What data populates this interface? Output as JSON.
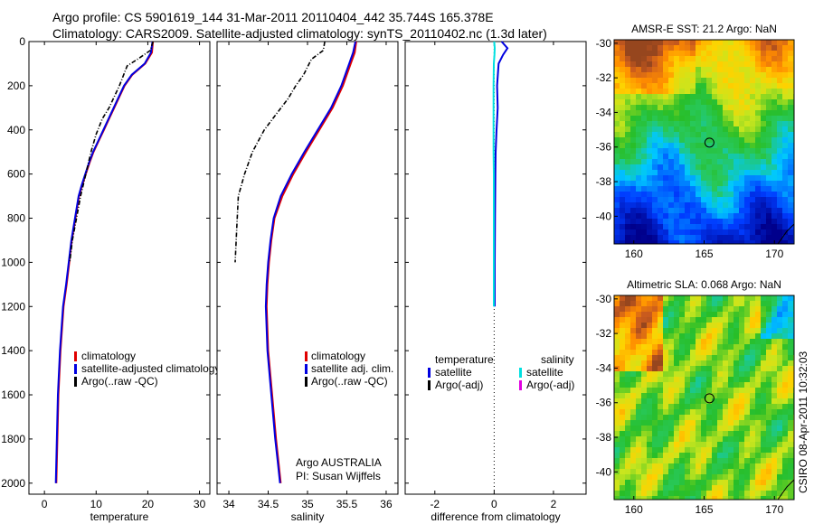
{
  "header": {
    "title_line1": "Argo profile: CS 5901619_144 31-Mar-2011 20110404_442 35.744S 165.378E",
    "title_line2": "Climatology: CARS2009. Satellite-adjusted climatology: synTS_20110402.nc (1.3d later)"
  },
  "side_stamp": "CSIRO 08-Apr-2011 10:32:03",
  "colors": {
    "climatology": "#e00000",
    "satellite": "#0000e0",
    "argo": "#000000",
    "sat_salinity": "#00e0e0",
    "argo_salinity_adj": "#e000e0"
  },
  "chart_data": [
    {
      "type": "line",
      "id": "temperature",
      "xlabel": "temperature",
      "ylabel": "",
      "xlim": [
        -3,
        32
      ],
      "ylim": [
        2050,
        0
      ],
      "y_reversed": true,
      "xticks": [
        0,
        10,
        20,
        30
      ],
      "yticks": [
        0,
        200,
        400,
        600,
        800,
        1000,
        1200,
        1400,
        1600,
        1800,
        2000
      ],
      "series": [
        {
          "name": "climatology",
          "color": "#e00000",
          "style": "solid",
          "x": [
            21.0,
            20.8,
            19.5,
            17.0,
            15.5,
            14.5,
            13.5,
            12.5,
            11.5,
            10.5,
            9.5,
            8.7,
            8.0,
            7.3,
            6.7,
            6.0,
            5.3,
            4.8,
            4.3,
            3.7,
            3.1,
            2.7,
            2.3
          ],
          "y": [
            0,
            50,
            100,
            150,
            200,
            250,
            300,
            350,
            400,
            450,
            500,
            550,
            600,
            650,
            700,
            800,
            900,
            1000,
            1100,
            1200,
            1400,
            1600,
            2000
          ]
        },
        {
          "name": "satellite-adjusted climatology",
          "color": "#0000e0",
          "style": "solid",
          "x": [
            20.9,
            20.6,
            19.4,
            16.9,
            15.4,
            14.4,
            13.4,
            12.4,
            11.4,
            10.4,
            9.4,
            8.6,
            7.9,
            7.2,
            6.6,
            5.9,
            5.2,
            4.7,
            4.2,
            3.6,
            3.0,
            2.6,
            2.2
          ],
          "y": [
            0,
            50,
            100,
            150,
            200,
            250,
            300,
            350,
            400,
            450,
            500,
            550,
            600,
            650,
            700,
            800,
            900,
            1000,
            1100,
            1200,
            1400,
            1600,
            2000
          ]
        },
        {
          "name": "Argo(..raw -QC)",
          "color": "#000000",
          "style": "dashdot",
          "x": [
            21.0,
            20.5,
            18.0,
            16.0,
            14.5,
            13.5,
            12.5,
            11.2,
            10.0,
            9.0,
            8.0,
            7.0,
            6.2,
            5.4,
            4.9
          ],
          "y": [
            0,
            40,
            80,
            110,
            200,
            250,
            300,
            350,
            420,
            500,
            600,
            700,
            800,
            900,
            1000
          ]
        }
      ],
      "legend": [
        "climatology",
        "satellite-adjusted climatology",
        "Argo(..raw -QC)"
      ],
      "legend_position": "lower-right"
    },
    {
      "type": "line",
      "id": "salinity",
      "xlabel": "salinity",
      "xlim": [
        33.85,
        36.15
      ],
      "ylim": [
        2050,
        0
      ],
      "y_reversed": true,
      "xticks": [
        34,
        34.5,
        35,
        35.5,
        36
      ],
      "xtick_labels": [
        "34",
        "34.5",
        "35",
        "35.5",
        "36"
      ],
      "series": [
        {
          "name": "climatology",
          "color": "#e00000",
          "style": "solid",
          "x": [
            35.62,
            35.6,
            35.55,
            35.45,
            35.32,
            35.15,
            34.98,
            34.82,
            34.68,
            34.58,
            34.54,
            34.51,
            34.49,
            34.48,
            34.5,
            34.55,
            34.6,
            34.63,
            34.66
          ],
          "y": [
            0,
            50,
            100,
            200,
            300,
            400,
            500,
            600,
            700,
            800,
            900,
            1000,
            1100,
            1200,
            1400,
            1600,
            1800,
            1900,
            2000
          ]
        },
        {
          "name": "satellite adj. clim.",
          "color": "#0000e0",
          "style": "solid",
          "x": [
            35.61,
            35.58,
            35.53,
            35.43,
            35.3,
            35.13,
            34.96,
            34.8,
            34.66,
            34.57,
            34.53,
            34.5,
            34.48,
            34.47,
            34.49,
            34.54,
            34.59,
            34.62,
            34.65
          ],
          "y": [
            0,
            50,
            100,
            200,
            300,
            400,
            500,
            600,
            700,
            800,
            900,
            1000,
            1100,
            1200,
            1400,
            1600,
            1800,
            1900,
            2000
          ]
        },
        {
          "name": "Argo(..raw -QC)",
          "color": "#000000",
          "style": "dashdot",
          "x": [
            35.22,
            35.2,
            35.05,
            34.95,
            34.85,
            34.75,
            34.6,
            34.45,
            34.3,
            34.2,
            34.12,
            34.1,
            34.08
          ],
          "y": [
            0,
            40,
            80,
            150,
            200,
            260,
            330,
            400,
            500,
            600,
            700,
            850,
            1000
          ]
        }
      ],
      "legend": [
        "climatology",
        "satellite adj. clim.",
        "Argo(..raw -QC)"
      ],
      "legend_position": "lower-right",
      "annotations": [
        "Argo AUSTRALIA",
        "PI: Susan Wijffels"
      ]
    },
    {
      "type": "line",
      "id": "difference",
      "xlabel": "difference from climatology",
      "xlim": [
        -3,
        3.1
      ],
      "ylim": [
        2050,
        0
      ],
      "y_reversed": true,
      "xticks": [
        -2,
        0,
        2
      ],
      "zero_line": "dotted",
      "series": [
        {
          "name": "temperature satellite",
          "color": "#0000e0",
          "style": "solid",
          "x": [
            0.25,
            0.45,
            0.3,
            0.15,
            0.1,
            0.12,
            0.08,
            0.05,
            0.04,
            0.03,
            0.02,
            0.02
          ],
          "y": [
            0,
            30,
            60,
            100,
            200,
            300,
            400,
            500,
            600,
            800,
            1000,
            1200
          ]
        },
        {
          "name": "salinity satellite",
          "color": "#00e0e0",
          "style": "solid",
          "x": [
            0.0,
            0.02,
            0.01,
            -0.01,
            -0.02,
            -0.02,
            -0.02,
            -0.02,
            -0.01,
            -0.01,
            -0.01,
            -0.01
          ],
          "y": [
            0,
            30,
            60,
            100,
            200,
            300,
            400,
            500,
            600,
            800,
            1000,
            1200
          ]
        }
      ],
      "legend_headers": [
        "temperature",
        "salinity"
      ],
      "legend_left": [
        "satellite",
        "Argo(-adj)"
      ],
      "legend_right": [
        "satellite",
        "Argo(-adj)"
      ],
      "legend_position": "center"
    },
    {
      "type": "heatmap",
      "id": "sst_map",
      "title": "AMSR-E SST: 21.2 Argo: NaN",
      "xlim": [
        158.6,
        171.4
      ],
      "ylim": [
        -41.6,
        -29.8
      ],
      "xticks": [
        160,
        165,
        170
      ],
      "yticks": [
        -30,
        -32,
        -34,
        -36,
        -38,
        -40
      ],
      "marker": {
        "lon": 165.378,
        "lat": -35.744
      }
    },
    {
      "type": "heatmap",
      "id": "sla_map",
      "title": "Altimetric SLA: 0.068 Argo: NaN",
      "xlim": [
        158.6,
        171.4
      ],
      "ylim": [
        -41.6,
        -29.8
      ],
      "xticks": [
        160,
        165,
        170
      ],
      "yticks": [
        -30,
        -32,
        -34,
        -36,
        -38,
        -40
      ],
      "marker": {
        "lon": 165.378,
        "lat": -35.744
      }
    }
  ]
}
